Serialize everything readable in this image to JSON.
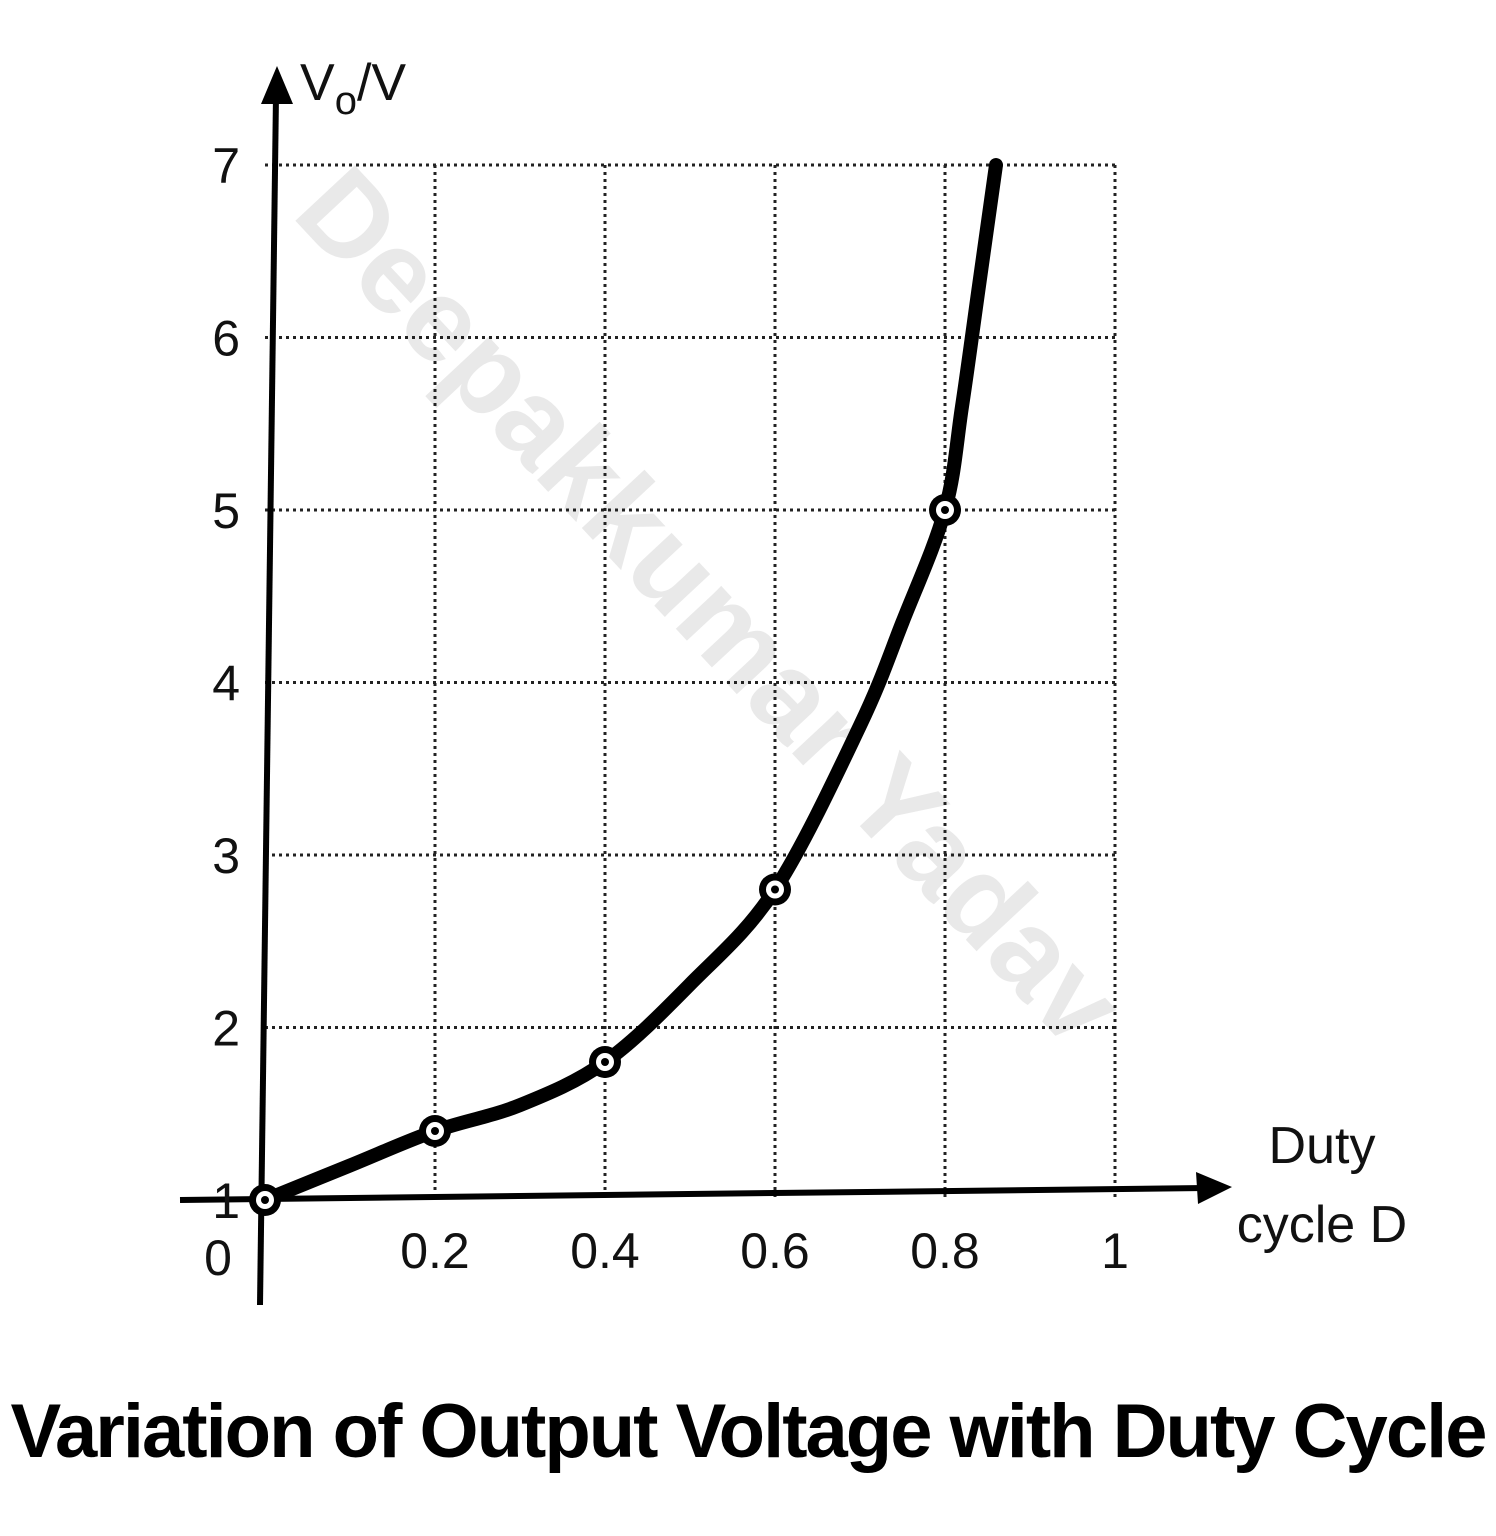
{
  "caption": "Variation of Output Voltage with Duty Cycle",
  "watermark": "Deepakkumar Yadav",
  "chart_data": {
    "type": "line",
    "title": "",
    "ylabel_main": "V",
    "ylabel_sub": "o",
    "ylabel_unit": "/V",
    "xlabel_line1": "Duty",
    "xlabel_line2": "cycle D",
    "xlim": [
      0,
      1
    ],
    "ylim": [
      1,
      7
    ],
    "x_ticks": [
      "0.2",
      "0.4",
      "0.6",
      "0.8",
      "1"
    ],
    "y_ticks": [
      "1",
      "2",
      "3",
      "4",
      "5",
      "6",
      "7"
    ],
    "origin_label": "0",
    "grid": true,
    "marked_points": {
      "x": [
        0,
        0.2,
        0.4,
        0.6,
        0.8
      ],
      "y": [
        1,
        1.4,
        1.8,
        2.8,
        5
      ]
    },
    "curve": {
      "x": [
        0,
        0.1,
        0.2,
        0.3,
        0.4,
        0.5,
        0.6,
        0.7,
        0.75,
        0.8,
        0.82,
        0.84,
        0.86
      ],
      "y": [
        1,
        1.2,
        1.4,
        1.55,
        1.8,
        2.25,
        2.8,
        3.75,
        4.35,
        5,
        5.6,
        6.3,
        7
      ]
    }
  }
}
